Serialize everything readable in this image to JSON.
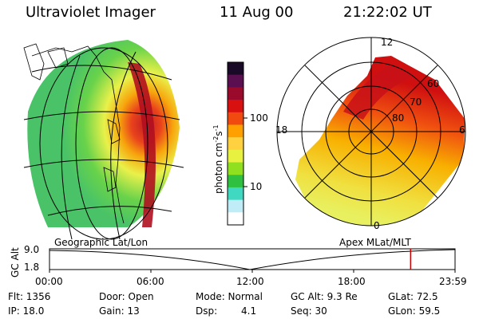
{
  "header": {
    "instrument": "Ultraviolet Imager",
    "date": "11 Aug 00",
    "time": "21:22:02 UT"
  },
  "geo_panel": {
    "label": "Geographic Lat/Lon"
  },
  "polar_panel": {
    "label": "Apex MLat/MLT",
    "mlt_labels": [
      "12",
      "18",
      "6",
      "0"
    ],
    "lat_labels": [
      "60",
      "70",
      "80"
    ]
  },
  "colorbar": {
    "unit_label": "photon cm",
    "unit_exp1": "-2",
    "unit_mid": "s",
    "unit_exp2": "-1",
    "tick_labels": [
      "100",
      "10"
    ],
    "colors": [
      "#1a0a28",
      "#5a1050",
      "#9a0a2a",
      "#d81010",
      "#f04a10",
      "#ffa000",
      "#ffd040",
      "#e8f040",
      "#90e020",
      "#30c040",
      "#40d8c0",
      "#c0ecf8",
      "#ffffff"
    ]
  },
  "timeline": {
    "axis_label": "GC Alt",
    "y_ticks": [
      "9.0",
      "1.8"
    ],
    "x_ticks": [
      "00:00",
      "06:00",
      "12:00",
      "18:00",
      "23:59"
    ],
    "marker_time_hours": 21.37,
    "marker_color": "#cc0000"
  },
  "info": {
    "row1": [
      "Flt: 1356",
      "Door: Open",
      "Mode: Normal",
      "GC Alt: 9.3 Re",
      "GLat: 72.5"
    ],
    "row2": [
      "IP: 18.0",
      "Gain: 13",
      "Dsp:",
      "4.1",
      "Seq: 30",
      "GLon: 59.5"
    ]
  }
}
